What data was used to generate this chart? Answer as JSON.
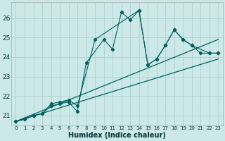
{
  "xlabel": "Humidex (Indice chaleur)",
  "bg_color": "#cce8e8",
  "grid_color": "#b0d0d0",
  "line_color": "#006060",
  "xlim": [
    -0.5,
    23.5
  ],
  "ylim": [
    20.5,
    26.8
  ],
  "yticks": [
    21,
    22,
    23,
    24,
    25,
    26
  ],
  "xticks": [
    0,
    1,
    2,
    3,
    4,
    5,
    6,
    7,
    8,
    9,
    10,
    11,
    12,
    13,
    14,
    15,
    16,
    17,
    18,
    19,
    20,
    21,
    22,
    23
  ],
  "series": [
    {
      "x": [
        0,
        1,
        2,
        3,
        4,
        5,
        6,
        7,
        8,
        10,
        11,
        12,
        13,
        14,
        15,
        16,
        17,
        18,
        19,
        20,
        21,
        22,
        23
      ],
      "y": [
        20.7,
        20.8,
        21.0,
        21.1,
        21.5,
        21.6,
        21.7,
        21.2,
        23.7,
        24.9,
        24.4,
        26.3,
        25.9,
        26.4,
        23.6,
        23.9,
        24.6,
        25.4,
        24.9,
        24.6,
        24.2,
        24.2,
        24.2
      ]
    },
    {
      "x": [
        0,
        2,
        3,
        4,
        5,
        6,
        7,
        9,
        14,
        15,
        16,
        17,
        18,
        19,
        20,
        22,
        23
      ],
      "y": [
        20.7,
        21.0,
        21.1,
        21.6,
        21.7,
        21.8,
        21.5,
        24.9,
        26.4,
        23.6,
        23.9,
        24.6,
        25.4,
        24.9,
        24.6,
        24.2,
        24.2
      ]
    },
    {
      "x": [
        0,
        23
      ],
      "y": [
        20.7,
        24.9
      ]
    },
    {
      "x": [
        0,
        23
      ],
      "y": [
        20.7,
        23.9
      ]
    }
  ]
}
